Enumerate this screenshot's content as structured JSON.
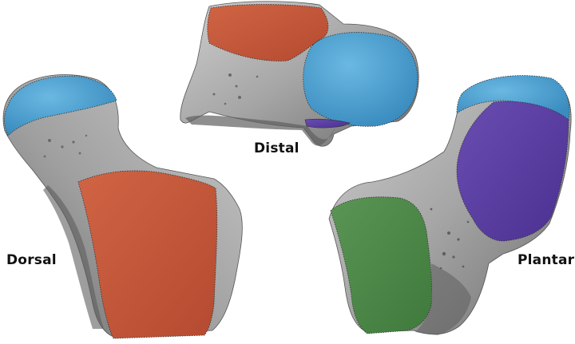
{
  "labels": {
    "distal": "Distal",
    "dorsal": "Dorsal",
    "plantar": "Plantar"
  },
  "colors": {
    "background": "#ffffff",
    "bone": "#a7a7a7",
    "bone_shadow": "#6f6f6f",
    "facet_blue": "#4da3d4",
    "facet_orange": "#c8573a",
    "facet_purple": "#5a3fa0",
    "facet_green": "#4f8a4a",
    "label_text": "#111111"
  },
  "views": [
    {
      "name": "distal",
      "facets": [
        "orange",
        "blue",
        "purple"
      ]
    },
    {
      "name": "dorsal",
      "facets": [
        "blue",
        "orange"
      ]
    },
    {
      "name": "plantar",
      "facets": [
        "blue",
        "purple",
        "green"
      ]
    }
  ]
}
